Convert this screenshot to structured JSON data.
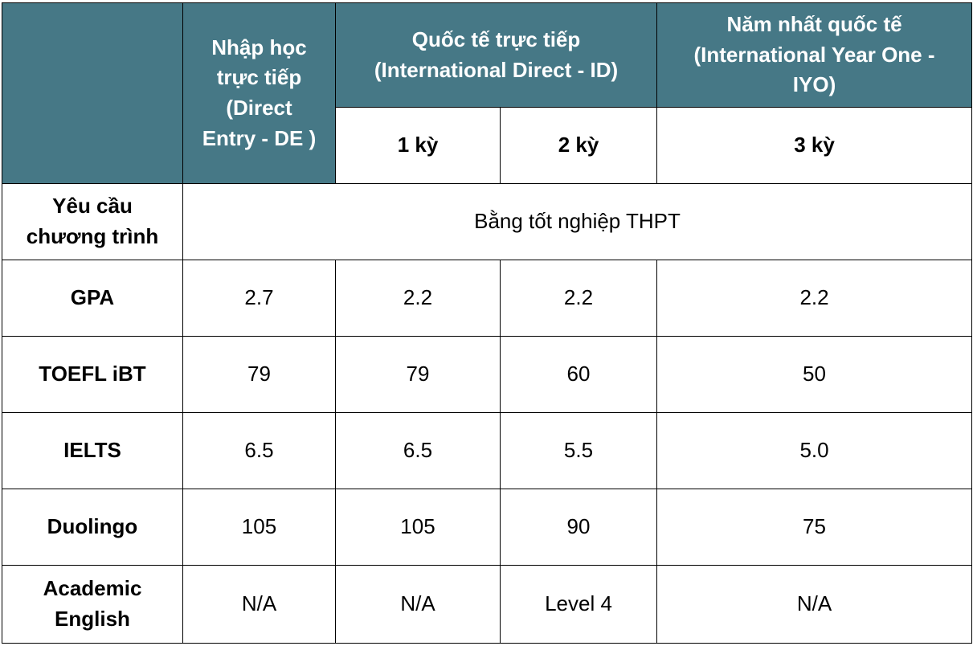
{
  "table": {
    "header": {
      "corner": "",
      "de_label": "Nhập học\ntrực  tiếp\n(Direct\nEntry - DE )",
      "id_label": "Quốc tế trực tiếp\n(International  Direct - ID)",
      "iyo_label": "Năm nhất quốc tế\n(International Year One -\nIYO)",
      "sub": [
        "1 kỳ",
        "2 kỳ",
        "3 kỳ"
      ]
    },
    "program_requirement": {
      "label": "Yêu cầu\nchương trình",
      "value": "Bằng tốt nghiệp THPT"
    },
    "rows": [
      {
        "label": "GPA",
        "de": "2.7",
        "id1": "2.2",
        "id2": "2.2",
        "iyo": "2.2"
      },
      {
        "label": "TOEFL iBT",
        "de": "79",
        "id1": "79",
        "id2": "60",
        "iyo": "50"
      },
      {
        "label": "IELTS",
        "de": "6.5",
        "id1": "6.5",
        "id2": "5.5",
        "iyo": "5.0"
      },
      {
        "label": "Duolingo",
        "de": "105",
        "id1": "105",
        "id2": "90",
        "iyo": "75"
      },
      {
        "label": "Academic\nEnglish",
        "de": "N/A",
        "id1": "N/A",
        "id2": "Level 4",
        "iyo": "N/A"
      }
    ]
  },
  "colors": {
    "header_bg": "#467886",
    "header_text": "#ffffff",
    "border": "#000000"
  }
}
